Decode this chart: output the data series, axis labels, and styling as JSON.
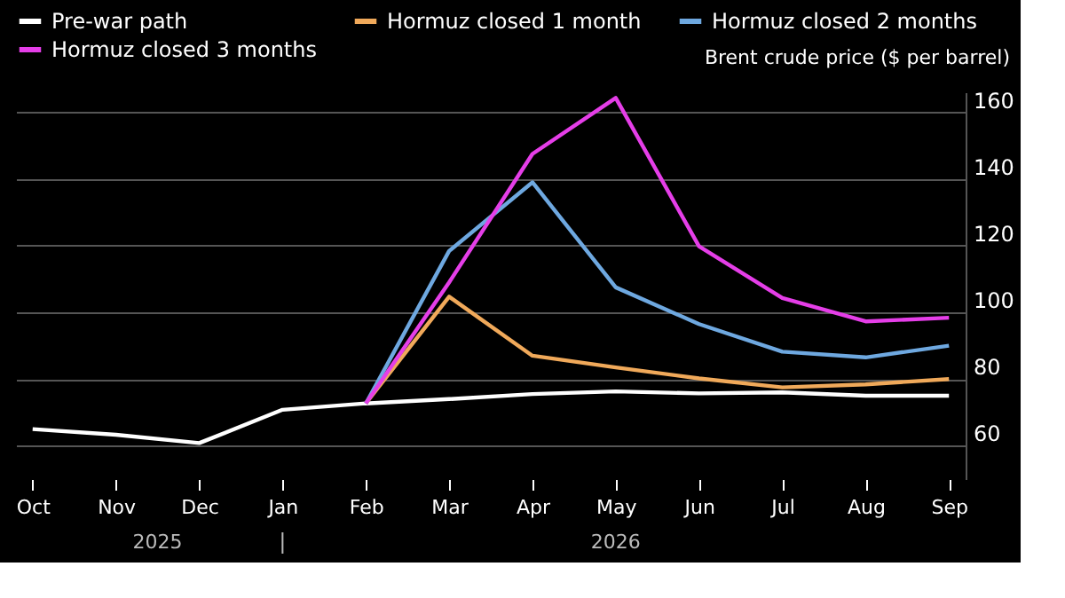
{
  "chart_data": {
    "type": "line",
    "ylabel": "Brent crude price ($ per barrel)",
    "categories": [
      "Oct",
      "Nov",
      "Dec",
      "Jan",
      "Feb",
      "Mar",
      "Apr",
      "May",
      "Jun",
      "Jul",
      "Aug",
      "Sep"
    ],
    "series": [
      {
        "name": "Pre-war path",
        "color": "#ffffff",
        "values": [
          65,
          63.3,
          60.8,
          70.8,
          72.7,
          74,
          75.5,
          76.3,
          75.7,
          76,
          75,
          75
        ]
      },
      {
        "name": "Hormuz closed 1 month",
        "color": "#f0a95a",
        "values": [
          null,
          null,
          null,
          null,
          72.7,
          104.7,
          87,
          83.5,
          80.2,
          77.5,
          78.4,
          80
        ]
      },
      {
        "name": "Hormuz closed 2 months",
        "color": "#6ea8e0",
        "values": [
          null,
          null,
          null,
          null,
          72.7,
          118.4,
          139,
          107.5,
          96.5,
          88.2,
          86.5,
          90
        ]
      },
      {
        "name": "Hormuz closed 3 months",
        "color": "#e53ee8",
        "values": [
          null,
          null,
          null,
          null,
          72.7,
          109,
          147.5,
          164.3,
          119.8,
          104.3,
          97.3,
          98.4
        ]
      }
    ],
    "ylim": [
      50,
      166
    ],
    "yticks": [
      60,
      80,
      100,
      120,
      140,
      160
    ],
    "grid": "y",
    "legend": "top left",
    "marker": "none",
    "line_style": "solid",
    "annotations": [
      "2025",
      "2026"
    ]
  }
}
